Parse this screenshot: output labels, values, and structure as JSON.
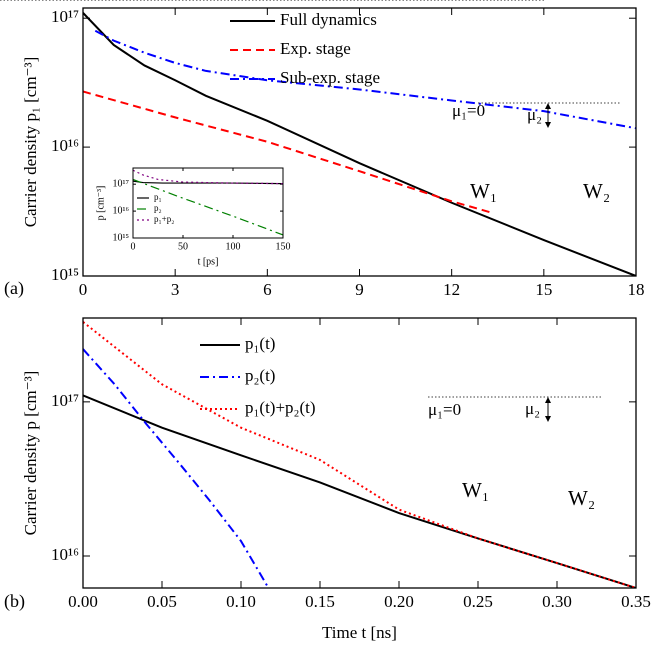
{
  "chart_data": [
    {
      "type": "line",
      "panel_label": "(a)",
      "y_label": "Carrier density p₁ [cm⁻³]",
      "log_y": true,
      "xlim": [
        0,
        18
      ],
      "xticks": [
        0,
        3,
        6,
        9,
        12,
        15,
        18
      ],
      "ylim": [
        1000000000000000.0,
        1.2e+17
      ],
      "yticks": [
        {
          "value": 1000000000000000.0,
          "label": "10¹⁵"
        },
        {
          "value": 1e+16,
          "label": "10¹⁶"
        },
        {
          "value": 1e+17,
          "label": "10¹⁷"
        }
      ],
      "series": [
        {
          "name": "Full dynamics",
          "color": "#000000",
          "dash": "solid",
          "x": [
            0,
            1,
            2,
            3,
            4,
            6,
            9,
            12,
            15,
            18
          ],
          "values": [
            1.1e+17,
            6.2e+16,
            4.3e+16,
            3.3e+16,
            2.5e+16,
            1.6e+16,
            7500000000000000.0,
            3700000000000000.0,
            1900000000000000.0,
            1000000000000000.0
          ]
        },
        {
          "name": "Exp. stage",
          "color": "#ff0000",
          "dash": "dash",
          "x": [
            0,
            3,
            6,
            9,
            12,
            13.3
          ],
          "values": [
            2.7e+16,
            1.7e+16,
            1.1e+16,
            6500000000000000.0,
            3800000000000000.0,
            3100000000000000.0
          ]
        },
        {
          "name": "Sub-exp. stage",
          "color": "#0000ff",
          "dash": "dashdot",
          "x": [
            0.4,
            1,
            2,
            3,
            4,
            6,
            9,
            12,
            15,
            18
          ],
          "values": [
            8e+16,
            6.7e+16,
            5.4e+16,
            4.5e+16,
            3.9e+16,
            3.3e+16,
            2.8e+16,
            2.3e+16,
            1.9e+16,
            1.4e+16
          ]
        }
      ],
      "annotations": {
        "mu1": "μ₁=0",
        "mu2": "μ₂",
        "w1": "W₁",
        "w2": "W₂"
      }
    },
    {
      "type": "line",
      "y_label": "p [cm⁻³]",
      "x_label": "t [ps]",
      "log_y": true,
      "xlim": [
        0,
        150
      ],
      "xticks": [
        0,
        50,
        100,
        150
      ],
      "ylim": [
        1000000000000000.0,
        4e+17
      ],
      "yticks": [
        {
          "value": 1000000000000000.0,
          "label": "10¹⁵"
        },
        {
          "value": 1e+16,
          "label": "10¹⁶"
        },
        {
          "value": 1e+17,
          "label": "10¹⁷"
        }
      ],
      "series": [
        {
          "name": "p₁",
          "color": "#000000",
          "dash": "solid",
          "x": [
            0,
            10,
            30,
            60,
            100,
            150
          ],
          "values": [
            1.3e+17,
            1.15e+17,
            1.1e+17,
            1.1e+17,
            1.1e+17,
            1.05e+17
          ]
        },
        {
          "name": "p₂",
          "color": "#008000",
          "dash": "dashdot",
          "x": [
            0,
            50,
            100,
            150
          ],
          "values": [
            1.5e+17,
            3e+16,
            6500000000000000.0,
            1300000000000000.0
          ]
        },
        {
          "name": "p₁+p₂",
          "color": "#800080",
          "dash": "dot",
          "x": [
            0,
            10,
            25,
            50,
            100,
            150
          ],
          "values": [
            3.3e+17,
            2.2e+17,
            1.5e+17,
            1.2e+17,
            1.1e+17,
            1.05e+17
          ]
        }
      ]
    },
    {
      "type": "line",
      "panel_label": "(b)",
      "y_label": "Carrier density p [cm⁻³]",
      "x_label": "Time t [ns]",
      "log_y": true,
      "xlim": [
        0,
        0.35
      ],
      "xticks": [
        {
          "value": 0,
          "label": "0.00"
        },
        0.05,
        {
          "value": 0.1,
          "label": "0.10"
        },
        0.15,
        {
          "value": 0.2,
          "label": "0.20"
        },
        0.25,
        {
          "value": 0.3,
          "label": "0.30"
        },
        0.35
      ],
      "ylim": [
        6200000000000000.0,
        3.5e+17
      ],
      "yticks": [
        {
          "value": 1e+16,
          "label": "10¹⁶"
        },
        {
          "value": 1e+17,
          "label": "10¹⁷"
        }
      ],
      "series": [
        {
          "name": "p₁(t)",
          "color": "#000000",
          "dash": "solid",
          "x": [
            0,
            0.05,
            0.1,
            0.15,
            0.2,
            0.25,
            0.3,
            0.35
          ],
          "values": [
            1.1e+17,
            6.8e+16,
            4.5e+16,
            3e+16,
            1.9e+16,
            1.3e+16,
            9000000000000000.0,
            6200000000000000.0
          ]
        },
        {
          "name": "p₂(t)",
          "color": "#0000ff",
          "dash": "dashdot",
          "x": [
            0,
            0.02,
            0.04,
            0.06,
            0.08,
            0.1,
            0.117
          ],
          "values": [
            2.2e+17,
            1.3e+17,
            7.2e+16,
            4.1e+16,
            2.3e+16,
            1.25e+16,
            6300000000000000.0
          ]
        },
        {
          "name": "p₁(t)+p₂(t)",
          "color": "#ff0000",
          "dash": "dot",
          "x": [
            0,
            0.05,
            0.1,
            0.15,
            0.2,
            0.25,
            0.3,
            0.35
          ],
          "values": [
            3.3e+17,
            1.3e+17,
            6.8e+16,
            4.2e+16,
            2e+16,
            1.3e+16,
            9000000000000000.0,
            6200000000000000.0
          ]
        }
      ],
      "annotations": {
        "mu1": "μ₁=0",
        "mu2": "μ₂",
        "w1": "W₁",
        "w2": "W₂"
      }
    }
  ]
}
